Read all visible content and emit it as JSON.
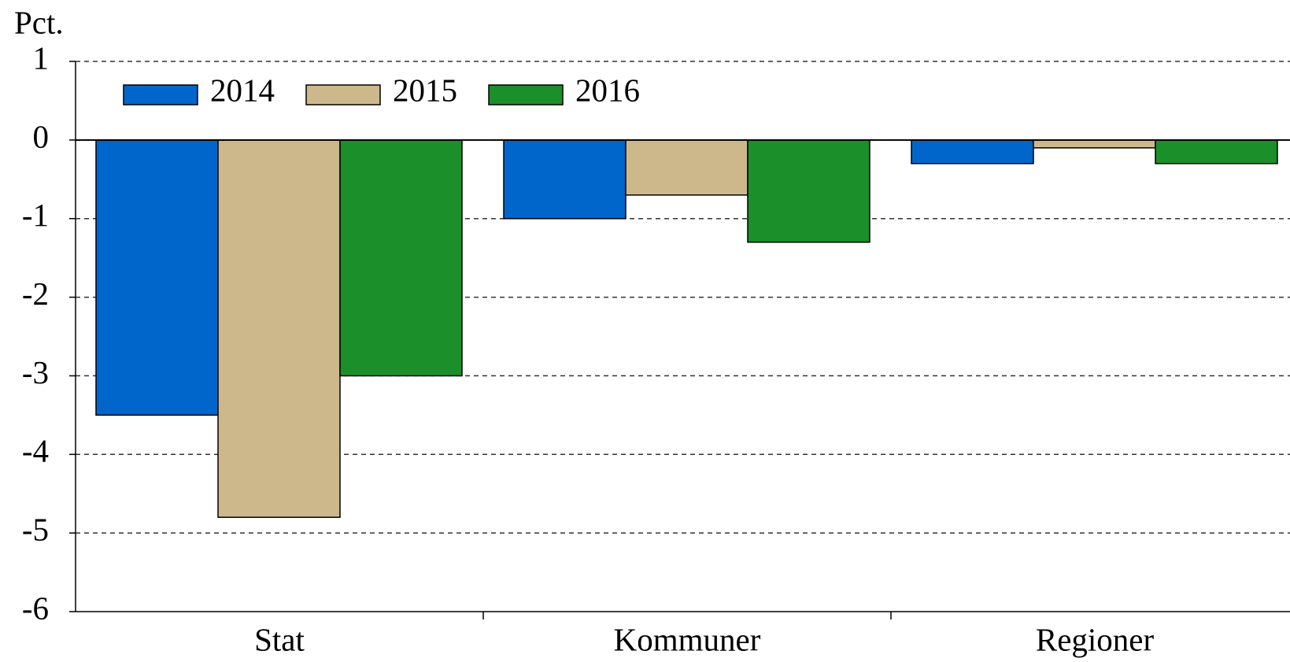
{
  "chart_data": {
    "type": "bar",
    "y_label": "Pct.",
    "categories": [
      "Stat",
      "Kommuner",
      "Regioner"
    ],
    "series": [
      {
        "name": "2014",
        "color": "#0066cc",
        "values": [
          -3.5,
          -1.0,
          -0.3
        ]
      },
      {
        "name": "2015",
        "color": "#cdb88c",
        "values": [
          -4.8,
          -0.7,
          -0.1
        ]
      },
      {
        "name": "2016",
        "color": "#1a8f2a",
        "values": [
          -3.0,
          -1.3,
          -0.3
        ]
      }
    ],
    "ylim": [
      -6,
      1
    ],
    "yticks": [
      1,
      0,
      -1,
      -2,
      -3,
      -4,
      -5,
      -6
    ],
    "grid": true,
    "legend": "top-left"
  }
}
